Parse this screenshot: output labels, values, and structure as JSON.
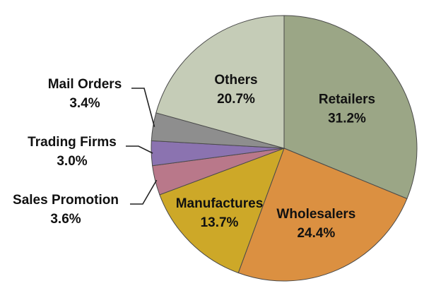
{
  "chart_data": {
    "type": "pie",
    "start_angle_deg": 90,
    "direction": "clockwise",
    "slices": [
      {
        "label": "Retailers",
        "value": 31.2,
        "value_text": "31.2%",
        "color": "#9ba686"
      },
      {
        "label": "Wholesalers",
        "value": 24.4,
        "value_text": "24.4%",
        "color": "#db9041"
      },
      {
        "label": "Manufactures",
        "value": 13.7,
        "value_text": "13.7%",
        "color": "#cda828"
      },
      {
        "label": "Sales Promotion",
        "value": 3.6,
        "value_text": "3.6%",
        "color": "#b9788a"
      },
      {
        "label": "Trading Firms",
        "value": 3.0,
        "value_text": "3.0%",
        "color": "#8b73b0"
      },
      {
        "label": "Mail Orders",
        "value": 3.4,
        "value_text": "3.4%",
        "color": "#8e8e8e"
      },
      {
        "label": "Others",
        "value": 20.7,
        "value_text": "20.7%",
        "color": "#c5ccb7"
      }
    ]
  }
}
